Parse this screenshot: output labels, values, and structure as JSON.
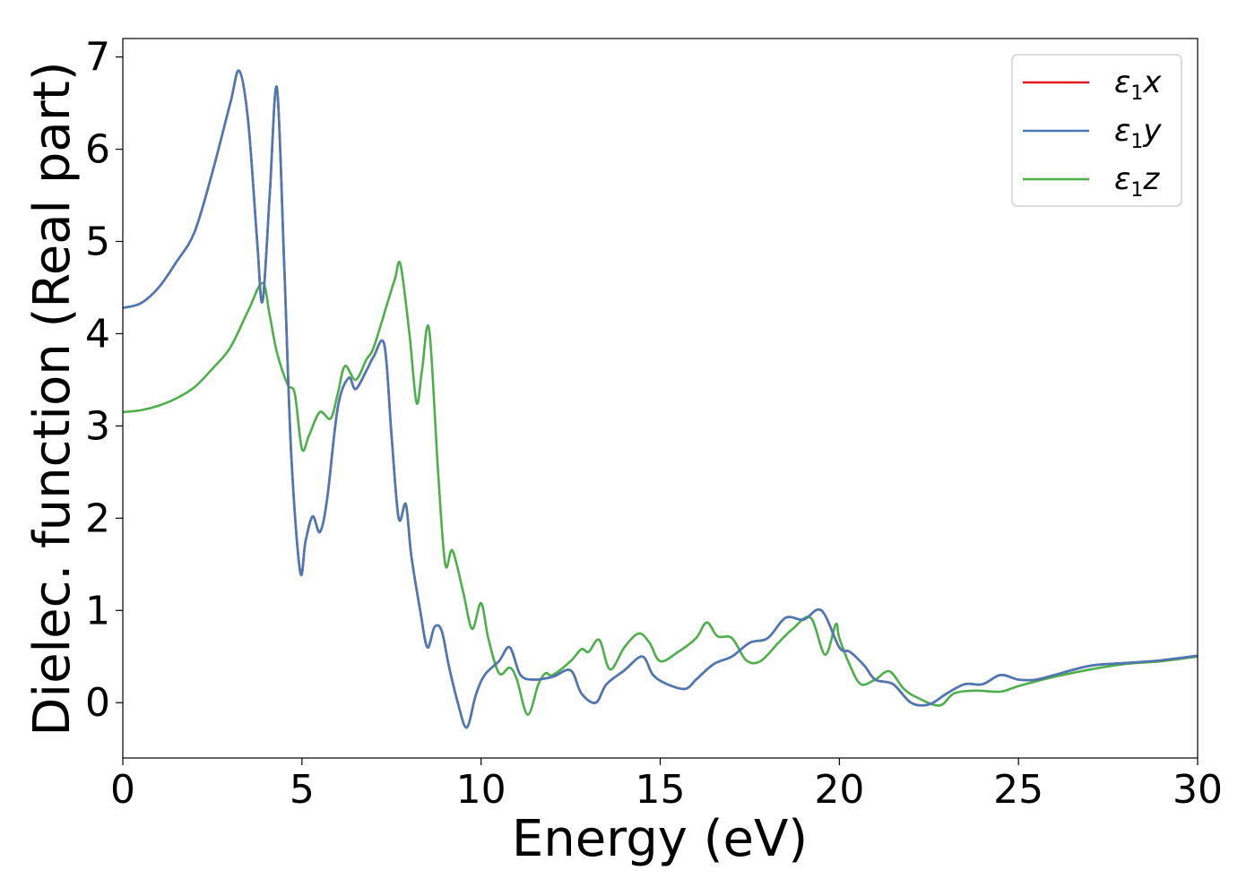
{
  "chart_data": {
    "type": "line",
    "xlabel": "Energy (eV)",
    "ylabel": "Dielec. function (Real part)",
    "xlim": [
      0,
      30
    ],
    "ylim": [
      -0.6,
      7.2
    ],
    "xticks": [
      "0",
      "5",
      "10",
      "15",
      "20",
      "25",
      "30"
    ],
    "yticks": [
      "0",
      "1",
      "2",
      "3",
      "4",
      "5",
      "6",
      "7"
    ],
    "grid": false,
    "legend_position": "top-right",
    "series": [
      {
        "name": "ε1x",
        "legend": {
          "main": "ε",
          "sub": "1",
          "axis": "x"
        },
        "color": "#e41a1c",
        "x": [
          0,
          0.5,
          1,
          1.5,
          2,
          2.5,
          3,
          3.25,
          3.5,
          3.75,
          3.9,
          4.1,
          4.3,
          4.5,
          4.7,
          4.95,
          5.1,
          5.3,
          5.5,
          5.7,
          6,
          6.3,
          6.5,
          6.8,
          7,
          7.3,
          7.5,
          7.7,
          7.9,
          8.05,
          8.3,
          8.5,
          8.7,
          8.9,
          9.1,
          9.35,
          9.6,
          9.85,
          10.1,
          10.5,
          10.8,
          11.1,
          11.5,
          12,
          12.5,
          12.8,
          13.2,
          13.5,
          14,
          14.5,
          14.8,
          15.2,
          15.7,
          16,
          16.5,
          17,
          17.5,
          18,
          18.5,
          19,
          19.5,
          20,
          20.3,
          20.7,
          21,
          21.5,
          22,
          22.5,
          23,
          23.5,
          24,
          24.5,
          25,
          25.5,
          26,
          27,
          28,
          29,
          30
        ],
        "values": [
          4.28,
          4.33,
          4.5,
          4.78,
          5.1,
          5.75,
          6.5,
          6.85,
          6.3,
          5.0,
          4.35,
          5.5,
          6.67,
          4.8,
          2.7,
          1.42,
          1.75,
          2.02,
          1.85,
          2.2,
          3.2,
          3.52,
          3.4,
          3.6,
          3.75,
          3.88,
          2.9,
          2.0,
          2.15,
          1.6,
          1.0,
          0.6,
          0.82,
          0.78,
          0.4,
          0.0,
          -0.27,
          0.08,
          0.3,
          0.45,
          0.6,
          0.3,
          0.25,
          0.28,
          0.35,
          0.1,
          0.0,
          0.2,
          0.35,
          0.5,
          0.3,
          0.2,
          0.15,
          0.25,
          0.42,
          0.5,
          0.65,
          0.7,
          0.92,
          0.9,
          1.0,
          0.6,
          0.55,
          0.4,
          0.25,
          0.2,
          0.0,
          -0.02,
          0.1,
          0.2,
          0.2,
          0.3,
          0.25,
          0.25,
          0.3,
          0.4,
          0.43,
          0.46,
          0.51
        ]
      },
      {
        "name": "ε1y",
        "legend": {
          "main": "ε",
          "sub": "1",
          "axis": "y"
        },
        "color": "#4a7ab5",
        "x": [
          0,
          0.5,
          1,
          1.5,
          2,
          2.5,
          3,
          3.25,
          3.5,
          3.75,
          3.9,
          4.1,
          4.3,
          4.5,
          4.7,
          4.95,
          5.1,
          5.3,
          5.5,
          5.7,
          6,
          6.3,
          6.5,
          6.8,
          7,
          7.3,
          7.5,
          7.7,
          7.9,
          8.05,
          8.3,
          8.5,
          8.7,
          8.9,
          9.1,
          9.35,
          9.6,
          9.85,
          10.1,
          10.5,
          10.8,
          11.1,
          11.5,
          12,
          12.5,
          12.8,
          13.2,
          13.5,
          14,
          14.5,
          14.8,
          15.2,
          15.7,
          16,
          16.5,
          17,
          17.5,
          18,
          18.5,
          19,
          19.5,
          20,
          20.3,
          20.7,
          21,
          21.5,
          22,
          22.5,
          23,
          23.5,
          24,
          24.5,
          25,
          25.5,
          26,
          27,
          28,
          29,
          30
        ],
        "values": [
          4.28,
          4.33,
          4.5,
          4.78,
          5.1,
          5.75,
          6.5,
          6.85,
          6.3,
          5.0,
          4.35,
          5.5,
          6.67,
          4.8,
          2.7,
          1.42,
          1.75,
          2.02,
          1.85,
          2.2,
          3.2,
          3.52,
          3.4,
          3.6,
          3.75,
          3.88,
          2.9,
          2.0,
          2.15,
          1.6,
          1.0,
          0.6,
          0.82,
          0.78,
          0.4,
          0.0,
          -0.27,
          0.08,
          0.3,
          0.45,
          0.6,
          0.3,
          0.25,
          0.28,
          0.35,
          0.1,
          0.0,
          0.2,
          0.35,
          0.5,
          0.3,
          0.2,
          0.15,
          0.25,
          0.42,
          0.5,
          0.65,
          0.7,
          0.92,
          0.9,
          1.0,
          0.6,
          0.55,
          0.4,
          0.25,
          0.2,
          0.0,
          -0.02,
          0.1,
          0.2,
          0.2,
          0.3,
          0.25,
          0.25,
          0.3,
          0.4,
          0.43,
          0.46,
          0.51
        ]
      },
      {
        "name": "ε1z",
        "legend": {
          "main": "ε",
          "sub": "1",
          "axis": "z"
        },
        "color": "#4daf4a",
        "x": [
          0,
          0.5,
          1,
          1.5,
          2,
          2.5,
          3,
          3.5,
          3.9,
          4.1,
          4.3,
          4.6,
          4.8,
          5.0,
          5.2,
          5.5,
          5.8,
          6.0,
          6.2,
          6.5,
          6.8,
          7.0,
          7.4,
          7.6,
          7.75,
          8.0,
          8.2,
          8.35,
          8.55,
          8.8,
          9.0,
          9.2,
          9.5,
          9.75,
          10.0,
          10.2,
          10.5,
          10.8,
          11.0,
          11.3,
          11.6,
          11.8,
          12.0,
          12.5,
          12.8,
          13.0,
          13.3,
          13.6,
          14.0,
          14.4,
          14.7,
          15.0,
          15.5,
          16.0,
          16.3,
          16.6,
          17.0,
          17.4,
          17.8,
          18.3,
          18.7,
          19.2,
          19.6,
          19.9,
          20.0,
          20.3,
          20.6,
          21.0,
          21.4,
          21.8,
          22.2,
          22.8,
          23.2,
          23.8,
          24.5,
          25.0,
          26,
          27,
          28,
          29,
          30
        ],
        "values": [
          3.15,
          3.17,
          3.22,
          3.3,
          3.42,
          3.62,
          3.85,
          4.25,
          4.55,
          4.2,
          3.8,
          3.45,
          3.35,
          2.75,
          2.9,
          3.15,
          3.08,
          3.35,
          3.65,
          3.5,
          3.72,
          3.85,
          4.35,
          4.6,
          4.75,
          4.0,
          3.25,
          3.6,
          4.05,
          2.5,
          1.5,
          1.65,
          1.2,
          0.8,
          1.08,
          0.7,
          0.32,
          0.38,
          0.25,
          -0.13,
          0.2,
          0.32,
          0.3,
          0.45,
          0.58,
          0.55,
          0.68,
          0.36,
          0.6,
          0.75,
          0.65,
          0.45,
          0.55,
          0.7,
          0.87,
          0.72,
          0.7,
          0.46,
          0.45,
          0.65,
          0.8,
          0.92,
          0.52,
          0.85,
          0.7,
          0.4,
          0.2,
          0.25,
          0.34,
          0.15,
          0.05,
          -0.03,
          0.1,
          0.13,
          0.12,
          0.18,
          0.28,
          0.36,
          0.42,
          0.45,
          0.5
        ]
      }
    ]
  }
}
